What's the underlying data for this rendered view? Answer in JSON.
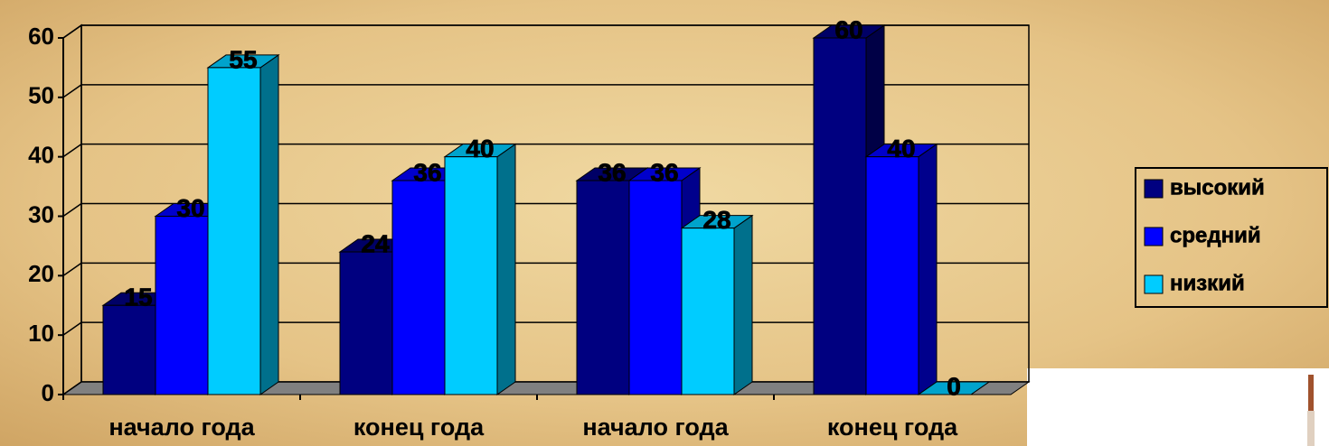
{
  "chart_data": {
    "type": "bar3d",
    "categories": [
      "начало года",
      "конец года",
      "начало года",
      "конец года"
    ],
    "series": [
      {
        "name": "высокий",
        "color": "#000080",
        "values": [
          15,
          24,
          36,
          60
        ]
      },
      {
        "name": "средний",
        "color": "#0000ff",
        "values": [
          30,
          36,
          36,
          40
        ]
      },
      {
        "name": "низкий",
        "color": "#00ccff",
        "values": [
          55,
          40,
          28,
          0
        ]
      }
    ],
    "ylim": [
      0,
      60
    ],
    "yticks": [
      0,
      10,
      20,
      30,
      40,
      50,
      60
    ],
    "grid": true,
    "legend": "right"
  }
}
